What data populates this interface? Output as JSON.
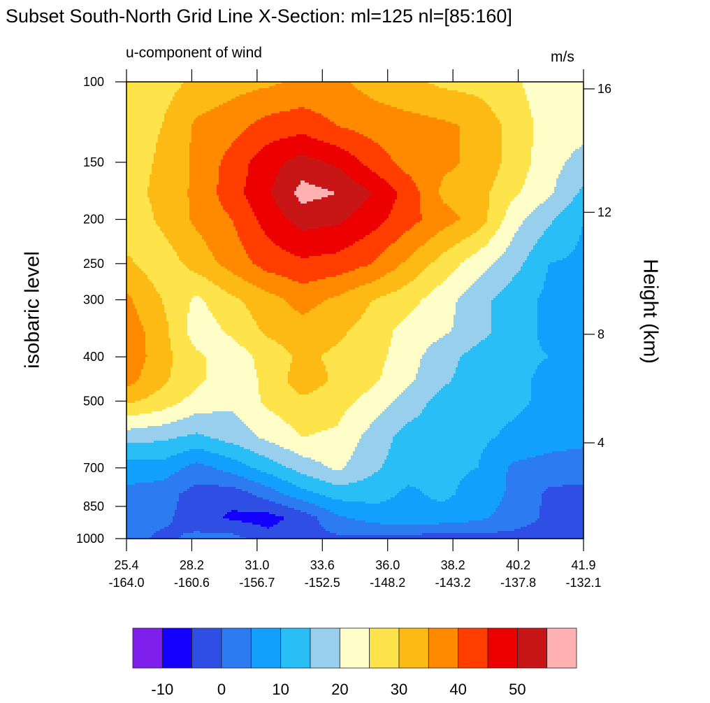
{
  "chart_data": {
    "type": "heatmap",
    "title": "Subset South-North Grid Line X-Section: ml=125 nl=[85:160]",
    "subtitle": "u-component of wind",
    "units": "m/s",
    "ylabel": "isobaric level",
    "y2label": "Height (km)",
    "y_scale": "log",
    "ylim": [
      1000,
      100
    ],
    "y_ticks": [
      100,
      150,
      200,
      250,
      300,
      400,
      500,
      700,
      850,
      1000
    ],
    "y2_ticks": [
      4,
      8,
      12,
      16
    ],
    "x_ticks": [
      {
        "lat": "25.4",
        "lon": "-164.0"
      },
      {
        "lat": "28.2",
        "lon": "-160.6"
      },
      {
        "lat": "31.0",
        "lon": "-156.7"
      },
      {
        "lat": "33.6",
        "lon": "-152.5"
      },
      {
        "lat": "36.0",
        "lon": "-148.2"
      },
      {
        "lat": "38.2",
        "lon": "-143.2"
      },
      {
        "lat": "40.2",
        "lon": "-137.8"
      },
      {
        "lat": "41.9",
        "lon": "-132.1"
      }
    ],
    "levels": [
      100,
      125,
      150,
      175,
      200,
      250,
      300,
      350,
      400,
      450,
      500,
      600,
      700,
      800,
      900,
      1000
    ],
    "values": [
      [
        27,
        28,
        31,
        33,
        34,
        36,
        36,
        33,
        31,
        29,
        28,
        26,
        22,
        22
      ],
      [
        27,
        30,
        36,
        38,
        42,
        43,
        40,
        38,
        37,
        36,
        34,
        28,
        23,
        22
      ],
      [
        27,
        31,
        36,
        42,
        48,
        52,
        49,
        43,
        38,
        36,
        34,
        28,
        22,
        18
      ],
      [
        27,
        32,
        36,
        43,
        49,
        57,
        55,
        50,
        43,
        34,
        32,
        26,
        21,
        14
      ],
      [
        26,
        31,
        36,
        40,
        47,
        52,
        51,
        47,
        42,
        37,
        33,
        22,
        16,
        10
      ],
      [
        31,
        27,
        32,
        37,
        42,
        44,
        43,
        40,
        34,
        28,
        22,
        17,
        10,
        9
      ],
      [
        36,
        30,
        24,
        29,
        33,
        37,
        34,
        30,
        27,
        22,
        17,
        12,
        9,
        8
      ],
      [
        38,
        32,
        22,
        26,
        31,
        33,
        31,
        28,
        23,
        21,
        17,
        12,
        9,
        7
      ],
      [
        39,
        32,
        26,
        22,
        27,
        31,
        29,
        27,
        22,
        17,
        13,
        11,
        10,
        7
      ],
      [
        37,
        31,
        26,
        22,
        26,
        33,
        29,
        26,
        21,
        16,
        12,
        11,
        9,
        7
      ],
      [
        31,
        28,
        23,
        21,
        26,
        29,
        27,
        23,
        18,
        13,
        12,
        11,
        9,
        8
      ],
      [
        17,
        16,
        14,
        17,
        21,
        25,
        24,
        18,
        13,
        12,
        11,
        9,
        7,
        6
      ],
      [
        7,
        8,
        3,
        7,
        12,
        17,
        21,
        16,
        12,
        11,
        10,
        4,
        3,
        3
      ],
      [
        4,
        2,
        -2,
        -3,
        2,
        8,
        12,
        12,
        9,
        11,
        8,
        4,
        -1,
        -2
      ],
      [
        3,
        1,
        -2,
        -6,
        -7,
        -3,
        4,
        7,
        9,
        8,
        6,
        3,
        -1,
        -2
      ],
      [
        2,
        -1,
        1,
        2,
        -3,
        -2,
        -1,
        -1,
        -2,
        -3,
        -2,
        -2,
        -3,
        -3
      ]
    ],
    "colorbar": {
      "boundaries": [
        -10,
        -5,
        0,
        5,
        10,
        15,
        20,
        25,
        30,
        35,
        40,
        45,
        50,
        55
      ],
      "labels": [
        "-10",
        "0",
        "10",
        "20",
        "30",
        "40",
        "50"
      ],
      "colors": [
        "#7f1fec",
        "#1400fe",
        "#2f4fe4",
        "#2d7bf0",
        "#12a0fc",
        "#29bff6",
        "#97cfed",
        "#fffec8",
        "#fee34a",
        "#feba14",
        "#ff8a00",
        "#ff3e00",
        "#ec0000",
        "#c81515",
        "#ffb0b0"
      ]
    },
    "legend": "bottom"
  }
}
